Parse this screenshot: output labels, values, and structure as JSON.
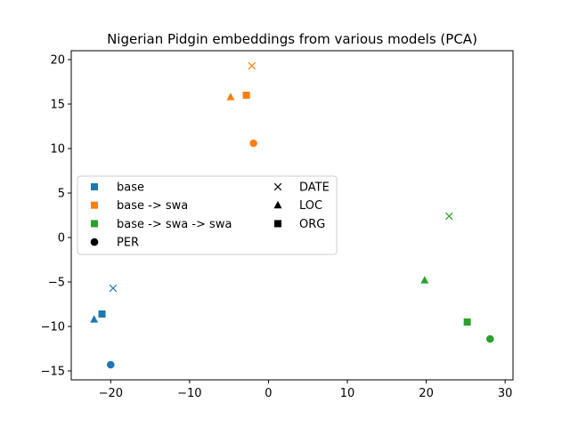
{
  "chart_data": {
    "type": "scatter",
    "title": "Nigerian Pidgin embeddings from various models (PCA)",
    "xlabel": "",
    "ylabel": "",
    "xlim": [
      -25,
      31
    ],
    "ylim": [
      -16,
      21
    ],
    "xticks": [
      -20,
      -10,
      0,
      10,
      20,
      30
    ],
    "yticks": [
      -15,
      -10,
      -5,
      0,
      5,
      10,
      15,
      20
    ],
    "xtick_labels": [
      "−20",
      "−10",
      "0",
      "10",
      "20",
      "30"
    ],
    "ytick_labels": [
      "−15",
      "−10",
      "−5",
      "0",
      "5",
      "10",
      "15",
      "20"
    ],
    "grid": false,
    "legend_position": "center-left",
    "colors": {
      "base": "#1f77b4",
      "base -> swa": "#ff7f0e",
      "base -> swa -> swa": "#2ca02c"
    },
    "markers": {
      "PER": "circle",
      "DATE": "x",
      "LOC": "triangle",
      "ORG": "square"
    },
    "series": [
      {
        "name": "base",
        "color": "#1f77b4",
        "points": [
          {
            "label": "PER",
            "x": -20,
            "y": -14.3
          },
          {
            "label": "DATE",
            "x": -19.7,
            "y": -5.7
          },
          {
            "label": "LOC",
            "x": -22.1,
            "y": -9.2
          },
          {
            "label": "ORG",
            "x": -21.1,
            "y": -8.6
          }
        ]
      },
      {
        "name": "base -> swa",
        "color": "#ff7f0e",
        "points": [
          {
            "label": "PER",
            "x": -1.9,
            "y": 10.6
          },
          {
            "label": "DATE",
            "x": -2.1,
            "y": 19.3
          },
          {
            "label": "LOC",
            "x": -4.8,
            "y": 15.8
          },
          {
            "label": "ORG",
            "x": -2.8,
            "y": 16.0
          }
        ]
      },
      {
        "name": "base -> swa -> swa",
        "color": "#2ca02c",
        "points": [
          {
            "label": "PER",
            "x": 28.1,
            "y": -11.4
          },
          {
            "label": "DATE",
            "x": 22.9,
            "y": 2.4
          },
          {
            "label": "LOC",
            "x": 19.8,
            "y": -4.8
          },
          {
            "label": "ORG",
            "x": 25.2,
            "y": -9.5
          }
        ]
      }
    ],
    "legend": {
      "left_column": [
        {
          "label": "base",
          "marker": "square",
          "color": "#1f77b4"
        },
        {
          "label": "base -> swa",
          "marker": "square",
          "color": "#ff7f0e"
        },
        {
          "label": "base -> swa -> swa",
          "marker": "square",
          "color": "#2ca02c"
        },
        {
          "label": "PER",
          "marker": "circle",
          "color": "#000000"
        }
      ],
      "right_column": [
        {
          "label": "DATE",
          "marker": "x",
          "color": "#000000"
        },
        {
          "label": "LOC",
          "marker": "triangle",
          "color": "#000000"
        },
        {
          "label": "ORG",
          "marker": "square",
          "color": "#000000"
        }
      ]
    }
  }
}
